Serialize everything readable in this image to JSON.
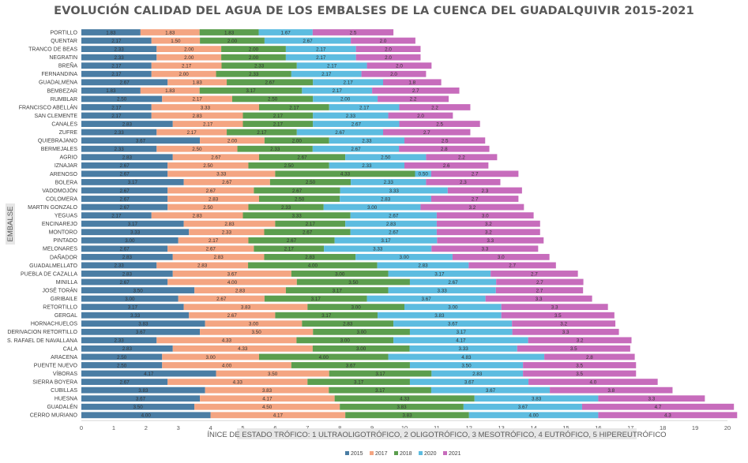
{
  "chart_data": {
    "type": "bar",
    "orientation": "horizontal",
    "stacked": true,
    "title": "EVOLUCIÓN CALIDAD DEL AGUA DE LOS EMBALSES DE LA CUENCA DEL GUADALQUIVIR 2015-2021",
    "xlabel": "ÍNICE DE ESTADO TRÓFICO: 1 ULTRAOLIGOTRÓFICO, 2 OLIGOTRÓFICO, 3 MESOTRÓFICO, 4 EUTRÓFICO, 5 HIPEREUTRÓFICO",
    "ylabel": "EMBALSE",
    "xlim": [
      0,
      20
    ],
    "xticks": [
      0,
      1,
      2,
      3,
      4,
      5,
      6,
      7,
      8,
      9,
      10,
      11,
      12,
      13,
      14,
      15,
      16,
      17,
      18,
      19,
      20
    ],
    "grid": false,
    "legend_position": "bottom",
    "categories": [
      "PORTILLO",
      "QUENTAR",
      "TRANCO DE BEAS",
      "NEGRATIN",
      "BREÑA",
      "FERNANDINA",
      "GUADALMENA",
      "BEMBEZAR",
      "RUMBLAR",
      "FRANCISCO ABELLÁN",
      "SAN CLEMENTE",
      "CANALES",
      "ZUFRE",
      "QUIEBRAJANO",
      "BERMEJALES",
      "AGRIO",
      "IZNAJAR",
      "ARENOSO",
      "BOLERA",
      "VADOMOJÓN",
      "COLOMERA",
      "MARTIN GONZALO",
      "YEGUAS",
      "ENCINAREJO",
      "MONTORO",
      "PINTADO",
      "MELONARES",
      "DAÑADOR",
      "GUADALMELLATO",
      "PUEBLA DE CAZALLA",
      "MINILLA",
      "JOSÉ TORÁN",
      "GIRIBAILE",
      "RETORTILLO",
      "GERGAL",
      "HORNACHUELOS",
      "DERIVACION RETORTILLO",
      "S. RAFAEL DE NAVALLANA",
      "CALA",
      "ARACENA",
      "PUENTE NUEVO",
      "VÍBORAS",
      "SIERRA BOYERA",
      "CUBILLAS",
      "HUESNA",
      "GUADALÉN",
      "CERRO MURIANO"
    ],
    "series": [
      {
        "name": "2015",
        "color": "#4A7DA4",
        "values": [
          1.83,
          2.17,
          2.33,
          2.33,
          2.17,
          2.17,
          2.67,
          1.83,
          2.5,
          2.17,
          2.17,
          2.83,
          2.33,
          3.67,
          2.33,
          2.83,
          2.67,
          2.67,
          3.17,
          2.67,
          2.67,
          2.67,
          2.17,
          3.17,
          3.33,
          3.0,
          2.67,
          2.83,
          2.33,
          2.83,
          2.67,
          3.5,
          3.0,
          3.17,
          3.33,
          3.83,
          3.67,
          2.33,
          2.83,
          2.5,
          2.5,
          4.17,
          2.67,
          3.83,
          3.67,
          3.5,
          4.0
        ]
      },
      {
        "name": "2017",
        "color": "#F4A582",
        "values": [
          1.83,
          1.5,
          2.0,
          2.0,
          2.17,
          2.0,
          1.83,
          1.83,
          2.17,
          3.33,
          2.83,
          2.17,
          2.17,
          2.0,
          2.5,
          2.67,
          2.5,
          3.33,
          2.67,
          2.67,
          2.83,
          2.5,
          2.83,
          2.83,
          2.33,
          2.17,
          2.67,
          2.83,
          2.83,
          3.67,
          4.0,
          2.83,
          2.67,
          3.83,
          2.67,
          3.0,
          3.5,
          4.33,
          4.33,
          3.0,
          4.0,
          3.5,
          4.33,
          3.83,
          4.17,
          4.5,
          4.17
        ]
      },
      {
        "name": "2018",
        "color": "#5C9E4E",
        "values": [
          1.83,
          2.0,
          2.0,
          2.0,
          2.33,
          2.33,
          2.67,
          3.17,
          2.5,
          2.17,
          2.17,
          2.17,
          2.17,
          2.0,
          2.33,
          2.67,
          2.5,
          4.33,
          2.5,
          2.67,
          2.5,
          2.33,
          3.33,
          2.17,
          2.67,
          2.67,
          2.17,
          2.83,
          4.0,
          3.0,
          3.5,
          3.17,
          3.17,
          3.0,
          3.17,
          2.83,
          3.0,
          3.0,
          3.0,
          4.0,
          3.67,
          3.17,
          3.17,
          3.17,
          4.33,
          3.83,
          3.83
        ]
      },
      {
        "name": "2020",
        "color": "#5DBCE0",
        "values": [
          1.67,
          2.67,
          2.17,
          2.17,
          2.17,
          2.17,
          2.17,
          2.17,
          2.0,
          2.17,
          2.33,
          2.67,
          2.67,
          2.33,
          2.67,
          2.5,
          2.33,
          0.5,
          2.33,
          3.33,
          2.83,
          3.0,
          2.67,
          2.83,
          2.67,
          3.17,
          3.33,
          3.0,
          2.83,
          3.17,
          2.67,
          3.33,
          3.67,
          3.0,
          3.83,
          3.67,
          3.17,
          4.17,
          3.33,
          4.83,
          3.5,
          2.83,
          3.67,
          3.67,
          3.83,
          3.67,
          4.0
        ]
      },
      {
        "name": "2021",
        "color": "#C76CBC",
        "values": [
          2.5,
          2.0,
          2.0,
          2.0,
          2.0,
          2.0,
          1.8,
          2.7,
          2.2,
          2.2,
          2.0,
          2.5,
          2.7,
          2.5,
          2.8,
          2.2,
          2.6,
          2.7,
          2.3,
          2.3,
          2.7,
          3.2,
          3.0,
          3.2,
          3.2,
          3.3,
          3.3,
          3.0,
          2.7,
          2.7,
          2.7,
          2.7,
          3.3,
          3.3,
          3.5,
          3.2,
          3.3,
          3.2,
          3.5,
          2.8,
          3.5,
          3.5,
          4.0,
          3.8,
          3.3,
          4.7,
          4.3
        ]
      }
    ]
  }
}
